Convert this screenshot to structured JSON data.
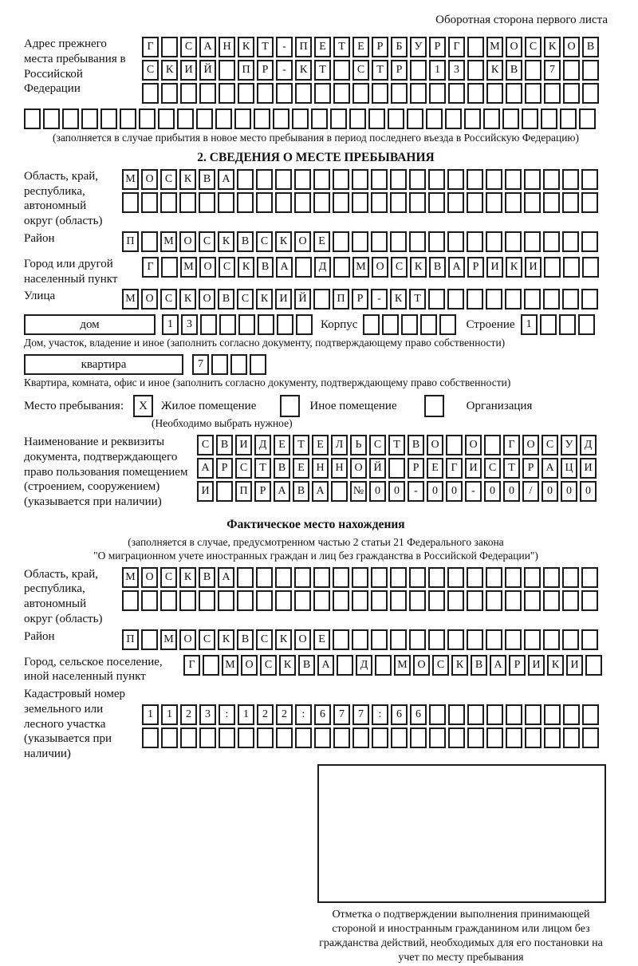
{
  "header": {
    "note": "Оборотная сторона первого листа"
  },
  "prev_address": {
    "label": "Адрес прежнего места пребывания в Российской Федерации",
    "rows": [
      "Г САНКТ-ПЕТЕРБУРГ МОСКОВ",
      "СКИЙ ПР-КТ СТР 13 КВ 7",
      "",
      ""
    ],
    "note": "(заполняется в случае прибытия в новое место пребывания в период последнего въезда в Российскую Федерацию)"
  },
  "section2": {
    "title": "2. СВЕДЕНИЯ О МЕСТЕ ПРЕБЫВАНИЯ",
    "region_label": "Область, край, республика, автономный округ (область)",
    "region_rows": [
      "МОСКВА",
      ""
    ],
    "district_label": "Район",
    "district_row": "П МОСКВСКОЕ",
    "city_label": "Город или другой населенный пункт",
    "city_row": "Г МОСКВА Д МОСКВАРИКИ",
    "street_label": "Улица",
    "street_row": "МОСКОВСКИЙ ПР-КТ",
    "house": {
      "label": "дом",
      "value": "13",
      "korpus_label": "Корпус",
      "korpus_value": "",
      "stroenie_label": "Строение",
      "stroenie_value": "1"
    },
    "house_note": "Дом, участок, владение и иное (заполнить согласно документу, подтверждающему право собственности)",
    "apartment": {
      "label": "квартира",
      "value": "7"
    },
    "apartment_note": "Квартира, комната, офис и иное (заполнить согласно документу, подтверждающему право собственности)",
    "stay_type": {
      "label": "Место пребывания:",
      "options": [
        {
          "label": "Жилое помещение",
          "checked": "X"
        },
        {
          "label": "Иное помещение",
          "checked": ""
        },
        {
          "label": "Организация",
          "checked": ""
        }
      ],
      "note": "(Необходимо выбрать нужное)"
    },
    "doc_label": "Наименование и реквизиты документа, подтверждающего право пользования помещением (строением, сооружением) (указывается при наличии)",
    "doc_rows": [
      "СВИДЕТЕЛЬСТВО О ГОСУД",
      "АРСТВЕННОЙ РЕГИСТРАЦИ",
      "И ПРАВА №00-00-00/000"
    ]
  },
  "actual_location": {
    "title": "Фактическое место нахождения",
    "note1": "(заполняется в случае, предусмотренном частью 2 статьи 21 Федерального закона",
    "note2": "\"О миграционном учете иностранных граждан и лиц без гражданства в Российской Федерации\")",
    "region_label": "Область, край, республика, автономный округ (область)",
    "region_rows": [
      "МОСКВА",
      ""
    ],
    "district_label": "Район",
    "district_row": "П МОСКВСКОЕ",
    "city_label": "Город, сельское поселение, иной населенный пункт",
    "city_row": "Г МОСКВА Д МОСКВАРИКИ",
    "cadastral_label": "Кадастровый номер земельного или лесного участка (указывается при наличии)",
    "cadastral_rows": [
      "1123:122:677:66",
      ""
    ]
  },
  "stamp": {
    "caption": "Отметка о подтверждении выполнения принимающей стороной и иностранным гражданином или лицом без гражданства действий, необходимых для его постановки на учет по месту пребывания"
  }
}
